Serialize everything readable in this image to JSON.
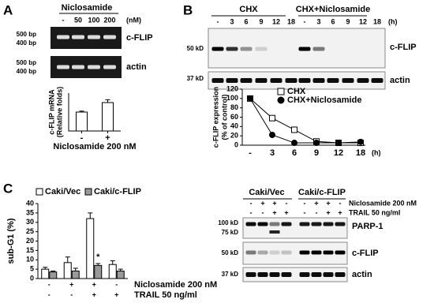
{
  "panels": {
    "a": {
      "letter": "A",
      "treatment": "Niclosamide",
      "lanes": [
        "-",
        "50",
        "100",
        "200"
      ],
      "unit": "(nM)",
      "ladder": [
        [
          "500 bp",
          "400 bp"
        ],
        [
          "500 bp",
          "400 bp"
        ]
      ],
      "bands": [
        "c-FLIP",
        "actin"
      ]
    },
    "b": {
      "letter": "B",
      "groups": [
        "CHX",
        "CHX+Niclosamide"
      ],
      "lanes": [
        [
          "-",
          "3",
          "6",
          "9",
          "12",
          "18"
        ],
        [
          "-",
          "3",
          "6",
          "9",
          "12",
          "18"
        ]
      ],
      "unit": "(h)",
      "markers": [
        "50 kD",
        "37 kD"
      ],
      "bands": [
        "c-FLIP",
        "actin"
      ]
    },
    "c": {
      "letter": "C",
      "groups": [
        "Caki/Vec",
        "Caki/c-FLIP"
      ],
      "conditions": [
        {
          "label": "Niclosamide 200 nM",
          "signs": [
            "-",
            "+",
            "+",
            "-",
            "-",
            "+",
            "+",
            "-"
          ]
        },
        {
          "label": "TRAIL 50 ng/ml",
          "signs": [
            "-",
            "-",
            "+",
            "+",
            "-",
            "-",
            "+",
            "+"
          ]
        }
      ],
      "markers": [
        "100 kD",
        "75 kD",
        "50 kD",
        "37 kD"
      ],
      "bands": [
        "PARP-1",
        "c-FLIP",
        "actin"
      ]
    }
  },
  "chart_data": [
    {
      "type": "bar",
      "ylabel": [
        "c-FLIP mRNA",
        "(Relative folds)"
      ],
      "categories": [
        "-",
        "+"
      ],
      "values": [
        1.0,
        1.5
      ],
      "errors": [
        0.05,
        0.15
      ],
      "color": "#ffffff",
      "xlabel": "Niclosamide 200 nM",
      "ylim": [
        0,
        2
      ]
    },
    {
      "type": "line",
      "ylabel": [
        "c-FLIP expression",
        "(% of control)"
      ],
      "categories": [
        "-",
        "3",
        "6",
        "9",
        "12",
        "18"
      ],
      "x_unit": "(h)",
      "series": [
        {
          "name": "CHX",
          "color": "#ffffff",
          "marker": "square",
          "values": [
            100,
            58,
            33,
            8,
            5,
            5
          ]
        },
        {
          "name": "CHX+Niclosamide",
          "color": "#000000",
          "marker": "circle",
          "values": [
            100,
            22,
            5,
            5,
            5,
            7
          ]
        }
      ],
      "ylim": [
        0,
        120
      ],
      "yticks": [
        0,
        20,
        40,
        60,
        80,
        100,
        120
      ]
    },
    {
      "type": "grouped-bar",
      "ylabel": "sub-G1 (%)",
      "categories": [
        null,
        null,
        null,
        null
      ],
      "conditions": [
        {
          "label": "Niclosamide 200 nM",
          "signs": [
            "-",
            "+",
            "+",
            "-"
          ]
        },
        {
          "label": "TRAIL 50 ng/ml",
          "signs": [
            "-",
            "-",
            "+",
            "+"
          ]
        }
      ],
      "series": [
        {
          "name": "Caki/Vec",
          "color": "#ffffff",
          "values": [
            5,
            8.5,
            32,
            7.5
          ],
          "errors": [
            1,
            3,
            3,
            2
          ]
        },
        {
          "name": "Caki/c-FLIP",
          "color": "#999999",
          "values": [
            3.5,
            4,
            7,
            4
          ],
          "errors": [
            0.5,
            1.5,
            1,
            1
          ]
        }
      ],
      "annotation": "*",
      "ylim": [
        0,
        40
      ],
      "yticks": [
        0,
        5,
        10,
        15,
        20,
        25,
        30,
        35,
        40
      ]
    }
  ]
}
